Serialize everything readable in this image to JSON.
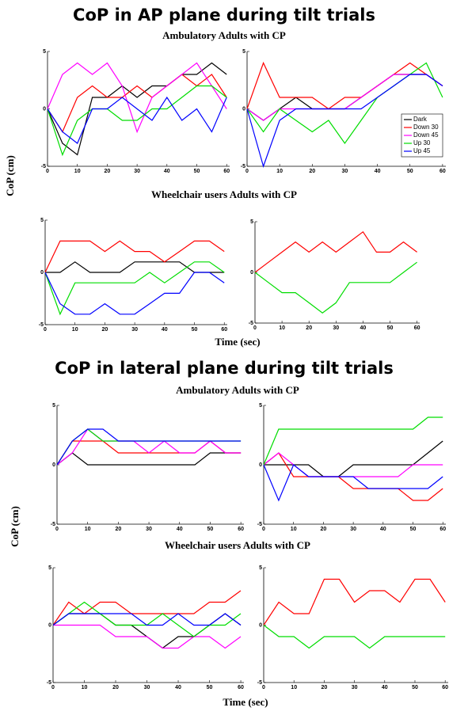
{
  "sections": [
    {
      "title": "CoP in AP plane during tilt trials",
      "groups": [
        "Ambulatory Adults with CP",
        "Wheelchair users Adults with CP"
      ],
      "y_label": "CoP (cm)",
      "x_label": "Time (sec)"
    },
    {
      "title": "CoP in lateral plane during tilt trials",
      "groups": [
        "Ambulatory Adults with CP",
        "Wheelchair users Adults with CP"
      ],
      "y_label": "CoP (cm)",
      "x_label": "Time (sec)"
    }
  ],
  "chart_data": [
    {
      "type": "line",
      "x": [
        0,
        5,
        10,
        15,
        20,
        25,
        30,
        35,
        40,
        45,
        50,
        55,
        60
      ],
      "xlim": [
        0,
        61
      ],
      "ylim": [
        -5,
        5
      ],
      "xticks": [
        0,
        10,
        20,
        30,
        40,
        50,
        60
      ],
      "yticks": [
        -5,
        0,
        5
      ],
      "series": [
        {
          "color": "#000000",
          "values": [
            0,
            -3,
            -4,
            1,
            1,
            2,
            1,
            2,
            2,
            3,
            3,
            4,
            3
          ]
        },
        {
          "color": "#ff0000",
          "values": [
            0,
            -2,
            1,
            2,
            1,
            1,
            2,
            1,
            2,
            3,
            2,
            3,
            1
          ]
        },
        {
          "color": "#ff00ff",
          "values": [
            0,
            3,
            4,
            3,
            4,
            2,
            -2,
            1,
            2,
            3,
            4,
            2,
            0
          ]
        },
        {
          "color": "#00dd00",
          "values": [
            0,
            -4,
            -1,
            0,
            0,
            -1,
            -1,
            0,
            0,
            1,
            2,
            2,
            1
          ]
        },
        {
          "color": "#0000ff",
          "values": [
            0,
            -2,
            -3,
            0,
            0,
            1,
            0,
            -1,
            1,
            -1,
            0,
            -2,
            1
          ]
        }
      ]
    },
    {
      "type": "line",
      "x": [
        0,
        5,
        10,
        15,
        20,
        25,
        30,
        35,
        40,
        45,
        50,
        55,
        60
      ],
      "xlim": [
        0,
        61
      ],
      "ylim": [
        -5,
        5
      ],
      "xticks": [
        0,
        10,
        20,
        30,
        40,
        50,
        60
      ],
      "yticks": [
        -5,
        0,
        5
      ],
      "legend": "lower right",
      "series": [
        {
          "name": "Dark",
          "color": "#000000",
          "values": [
            0,
            -1,
            0,
            1,
            0,
            0,
            0,
            1,
            2,
            3,
            3,
            3,
            2
          ]
        },
        {
          "name": "Down 30",
          "color": "#ff0000",
          "values": [
            0,
            4,
            1,
            1,
            1,
            0,
            1,
            1,
            2,
            3,
            4,
            3,
            2
          ]
        },
        {
          "name": "Down 45",
          "color": "#ff00ff",
          "values": [
            0,
            -1,
            0,
            0,
            0,
            0,
            0,
            1,
            2,
            3,
            3,
            3,
            2
          ]
        },
        {
          "name": "Up 30",
          "color": "#00dd00",
          "values": [
            0,
            -2,
            0,
            -1,
            -2,
            -1,
            -3,
            -1,
            1,
            2,
            3,
            4,
            1
          ]
        },
        {
          "name": "Up 45",
          "color": "#0000ff",
          "values": [
            0,
            -5,
            -1,
            0,
            0,
            0,
            0,
            0,
            1,
            2,
            3,
            3,
            2
          ]
        }
      ]
    },
    {
      "type": "line",
      "x": [
        0,
        5,
        10,
        15,
        20,
        25,
        30,
        35,
        40,
        45,
        50,
        55,
        60
      ],
      "xlim": [
        0,
        61
      ],
      "ylim": [
        -5,
        5
      ],
      "xticks": [
        0,
        10,
        20,
        30,
        40,
        50,
        60
      ],
      "yticks": [
        -5,
        0,
        5
      ],
      "series": [
        {
          "color": "#000000",
          "values": [
            0,
            0,
            1,
            0,
            0,
            0,
            1,
            1,
            1,
            1,
            0,
            0,
            0
          ]
        },
        {
          "color": "#ff0000",
          "values": [
            0,
            3,
            3,
            3,
            2,
            3,
            2,
            2,
            1,
            2,
            3,
            3,
            2
          ]
        },
        {
          "color": "#00dd00",
          "values": [
            0,
            -4,
            -1,
            -1,
            -1,
            -1,
            -1,
            0,
            -1,
            0,
            1,
            1,
            0
          ]
        },
        {
          "color": "#0000ff",
          "values": [
            0,
            -3,
            -4,
            -4,
            -3,
            -4,
            -4,
            -3,
            -2,
            -2,
            0,
            0,
            -1
          ]
        }
      ]
    },
    {
      "type": "line",
      "x": [
        0,
        5,
        10,
        15,
        20,
        25,
        30,
        35,
        40,
        45,
        50,
        55,
        60
      ],
      "xlim": [
        0,
        61
      ],
      "ylim": [
        -5,
        5
      ],
      "xticks": [
        0,
        10,
        20,
        30,
        40,
        50,
        60
      ],
      "yticks": [
        -5,
        0,
        5
      ],
      "series": [
        {
          "color": "#ff0000",
          "values": [
            0,
            1,
            2,
            3,
            2,
            3,
            2,
            3,
            4,
            2,
            2,
            3,
            2
          ]
        },
        {
          "color": "#00dd00",
          "values": [
            0,
            -1,
            -2,
            -2,
            -3,
            -4,
            -3,
            -1,
            -1,
            -1,
            -1,
            0,
            1
          ]
        }
      ]
    },
    {
      "type": "line",
      "x": [
        0,
        5,
        10,
        15,
        20,
        25,
        30,
        35,
        40,
        45,
        50,
        55,
        60
      ],
      "xlim": [
        0,
        61
      ],
      "ylim": [
        -5,
        5
      ],
      "xticks": [
        0,
        10,
        20,
        30,
        40,
        50,
        60
      ],
      "yticks": [
        -5,
        0,
        5
      ],
      "series": [
        {
          "color": "#000000",
          "values": [
            0,
            1,
            0,
            0,
            0,
            0,
            0,
            0,
            0,
            0,
            1,
            1,
            1
          ]
        },
        {
          "color": "#ff0000",
          "values": [
            0,
            2,
            2,
            2,
            1,
            1,
            1,
            1,
            1,
            1,
            2,
            1,
            1
          ]
        },
        {
          "color": "#ff00ff",
          "values": [
            0,
            1,
            3,
            2,
            2,
            2,
            1,
            2,
            1,
            1,
            2,
            1,
            1
          ]
        },
        {
          "color": "#00dd00",
          "values": [
            0,
            2,
            3,
            2,
            2,
            2,
            2,
            2,
            2,
            2,
            2,
            2,
            2
          ]
        },
        {
          "color": "#0000ff",
          "values": [
            0,
            2,
            3,
            3,
            2,
            2,
            2,
            2,
            2,
            2,
            2,
            2,
            2
          ]
        }
      ]
    },
    {
      "type": "line",
      "x": [
        0,
        5,
        10,
        15,
        20,
        25,
        30,
        35,
        40,
        45,
        50,
        55,
        60
      ],
      "xlim": [
        0,
        61
      ],
      "ylim": [
        -5,
        5
      ],
      "xticks": [
        0,
        10,
        20,
        30,
        40,
        50,
        60
      ],
      "yticks": [
        -5,
        0,
        5
      ],
      "series": [
        {
          "color": "#000000",
          "values": [
            0,
            0,
            0,
            0,
            -1,
            -1,
            0,
            0,
            0,
            0,
            0,
            1,
            2
          ]
        },
        {
          "color": "#ff0000",
          "values": [
            0,
            1,
            -1,
            -1,
            -1,
            -1,
            -2,
            -2,
            -2,
            -2,
            -3,
            -3,
            -2
          ]
        },
        {
          "color": "#ff00ff",
          "values": [
            0,
            1,
            0,
            -1,
            -1,
            -1,
            -1,
            -1,
            -1,
            -1,
            0,
            0,
            0
          ]
        },
        {
          "color": "#00dd00",
          "values": [
            0,
            3,
            3,
            3,
            3,
            3,
            3,
            3,
            3,
            3,
            3,
            4,
            4
          ]
        },
        {
          "color": "#0000ff",
          "values": [
            0,
            -3,
            0,
            -1,
            -1,
            -1,
            -1,
            -2,
            -2,
            -2,
            -2,
            -2,
            -1
          ]
        }
      ]
    },
    {
      "type": "line",
      "x": [
        0,
        5,
        10,
        15,
        20,
        25,
        30,
        35,
        40,
        45,
        50,
        55,
        60
      ],
      "xlim": [
        0,
        61
      ],
      "ylim": [
        -5,
        5
      ],
      "xticks": [
        0,
        10,
        20,
        30,
        40,
        50,
        60
      ],
      "yticks": [
        -5,
        0,
        5
      ],
      "series": [
        {
          "color": "#000000",
          "values": [
            0,
            1,
            1,
            1,
            0,
            0,
            -1,
            -2,
            -1,
            -1,
            0,
            1,
            0
          ]
        },
        {
          "color": "#ff0000",
          "values": [
            0,
            2,
            1,
            2,
            2,
            1,
            1,
            1,
            1,
            1,
            2,
            2,
            3
          ]
        },
        {
          "color": "#ff00ff",
          "values": [
            0,
            0,
            0,
            0,
            -1,
            -1,
            -1,
            -2,
            -2,
            -1,
            -1,
            -2,
            -1
          ]
        },
        {
          "color": "#00dd00",
          "values": [
            0,
            1,
            2,
            1,
            0,
            0,
            0,
            1,
            0,
            -1,
            0,
            0,
            1
          ]
        },
        {
          "color": "#0000ff",
          "values": [
            0,
            1,
            1,
            1,
            1,
            1,
            0,
            0,
            1,
            0,
            0,
            1,
            0
          ]
        }
      ]
    },
    {
      "type": "line",
      "x": [
        0,
        5,
        10,
        15,
        20,
        25,
        30,
        35,
        40,
        45,
        50,
        55,
        60
      ],
      "xlim": [
        0,
        61
      ],
      "ylim": [
        -5,
        5
      ],
      "xticks": [
        0,
        10,
        20,
        30,
        40,
        50,
        60
      ],
      "yticks": [
        -5,
        0,
        5
      ],
      "series": [
        {
          "color": "#ff0000",
          "values": [
            0,
            2,
            1,
            1,
            4,
            4,
            2,
            3,
            3,
            2,
            4,
            4,
            2
          ]
        },
        {
          "color": "#00dd00",
          "values": [
            0,
            -1,
            -1,
            -2,
            -1,
            -1,
            -1,
            -2,
            -1,
            -1,
            -1,
            -1,
            -1
          ]
        }
      ]
    }
  ]
}
